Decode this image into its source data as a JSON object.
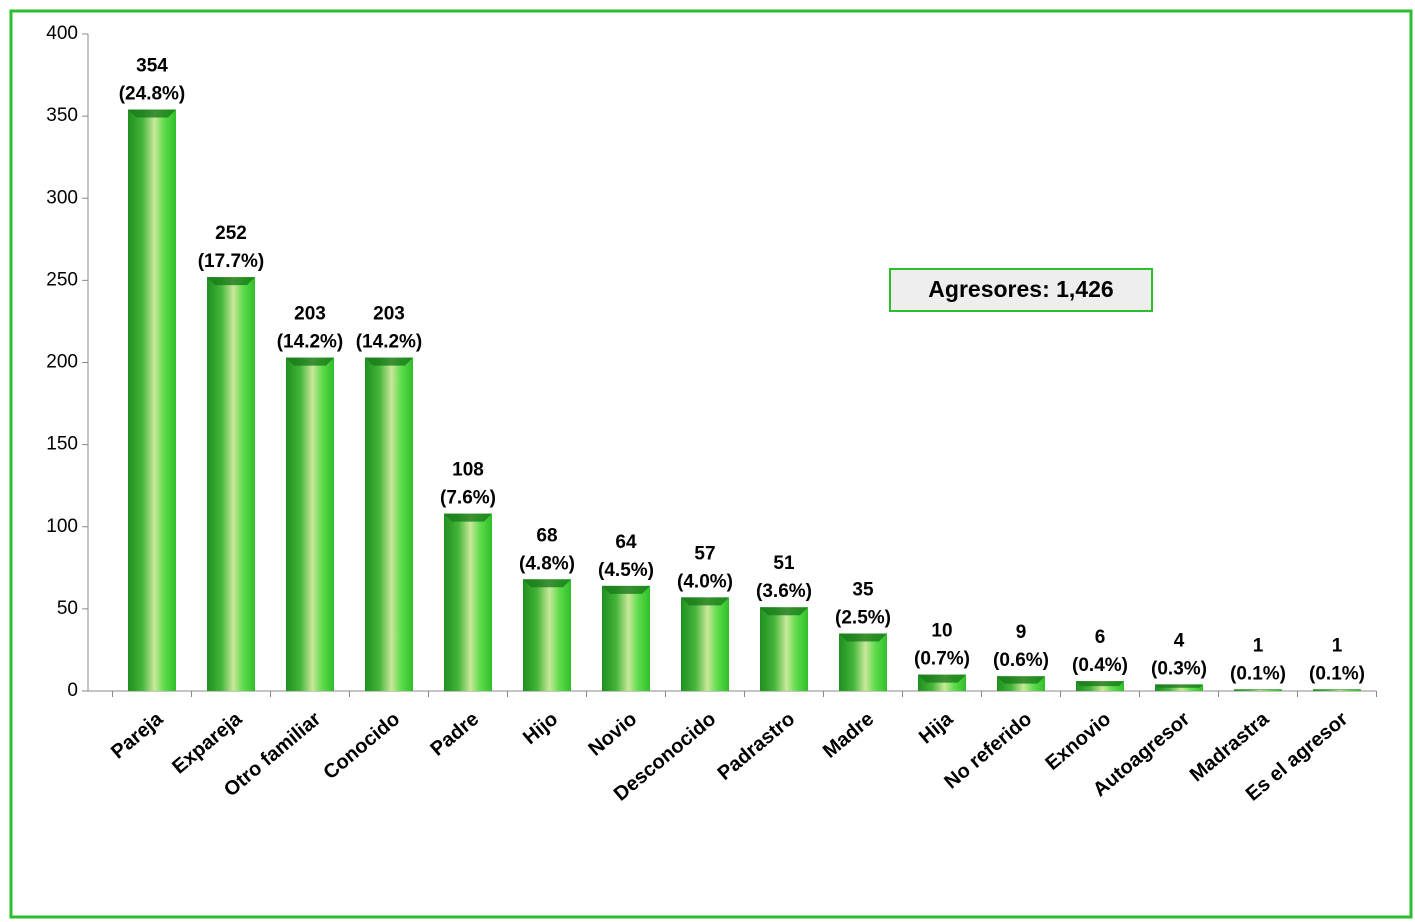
{
  "chart_data": {
    "type": "bar",
    "categories": [
      "Pareja",
      "Expareja",
      "Otro familiar",
      "Conocido",
      "Padre",
      "Hijo",
      "Novio",
      "Desconocido",
      "Padrastro",
      "Madre",
      "Hija",
      "No referido",
      "Exnovio",
      "Autoagresor",
      "Madrastra",
      "Es el agresor"
    ],
    "values": [
      354,
      252,
      203,
      203,
      108,
      68,
      64,
      57,
      51,
      35,
      10,
      9,
      6,
      4,
      1,
      1
    ],
    "value_labels": [
      "354 (24.8%)",
      "252 (17.7%)",
      "203 (14.2%)",
      "203 (14.2%)",
      "108 (7.6%)",
      "68 (4.8%)",
      "64 (4.5%)",
      "57 (4.0%)",
      "51 (3.6%)",
      "35 (2.5%)",
      "10 (0.7%)",
      "9 (0.6%)",
      "6 (0.4%)",
      "4 (0.3%)",
      "1 (0.1%)",
      "1 (0.1%)"
    ],
    "color": "#3fc93a",
    "ylim": [
      0,
      400
    ],
    "yticks": [
      0,
      50,
      100,
      150,
      200,
      250,
      300,
      350,
      400
    ],
    "annotation": "Agresores: 1,426"
  }
}
